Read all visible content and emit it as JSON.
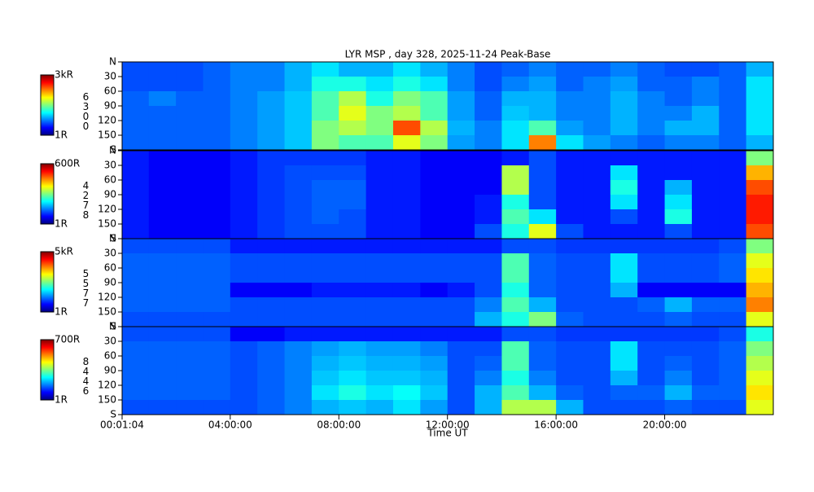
{
  "chart_data": {
    "type": "heatmap",
    "title": "LYR MSP , day 328, 2025-11-24 Peak-Base",
    "xlabel": "Time UT",
    "xlim": [
      0.01778,
      24
    ],
    "xticks": [
      {
        "value": 0.01778,
        "label": "00:01:04"
      },
      {
        "value": 4,
        "label": "04:00:00"
      },
      {
        "value": 8,
        "label": "08:00:00"
      },
      {
        "value": 12,
        "label": "12:00:00"
      },
      {
        "value": 16,
        "label": "16:00:00"
      },
      {
        "value": 20,
        "label": "20:00:00"
      }
    ],
    "panels": [
      {
        "wavelength": "6300",
        "colorbar_max": "3kR",
        "colorbar_min": "1R",
        "ylim": [
          0,
          180
        ],
        "yticks": [
          {
            "value": 0,
            "label": "N"
          },
          30,
          60,
          90,
          120,
          150,
          {
            "value": 180,
            "label": "S"
          }
        ],
        "levels": [
          [
            0.2,
            0.2,
            0.2,
            0.22,
            0.25,
            0.25,
            0.3,
            0.35,
            0.3,
            0.3,
            0.35,
            0.3,
            0.25,
            0.2,
            0.22,
            0.25,
            0.22,
            0.22,
            0.25,
            0.22,
            0.2,
            0.2,
            0.22,
            0.3
          ],
          [
            0.2,
            0.2,
            0.2,
            0.22,
            0.25,
            0.25,
            0.3,
            0.4,
            0.4,
            0.35,
            0.4,
            0.35,
            0.25,
            0.2,
            0.25,
            0.28,
            0.22,
            0.25,
            0.28,
            0.22,
            0.22,
            0.25,
            0.22,
            0.35
          ],
          [
            0.22,
            0.25,
            0.22,
            0.22,
            0.25,
            0.28,
            0.32,
            0.45,
            0.55,
            0.4,
            0.5,
            0.45,
            0.28,
            0.22,
            0.3,
            0.3,
            0.25,
            0.25,
            0.3,
            0.25,
            0.22,
            0.25,
            0.22,
            0.35
          ],
          [
            0.22,
            0.22,
            0.22,
            0.22,
            0.25,
            0.28,
            0.32,
            0.45,
            0.6,
            0.5,
            0.55,
            0.45,
            0.28,
            0.22,
            0.32,
            0.3,
            0.25,
            0.25,
            0.3,
            0.25,
            0.25,
            0.3,
            0.22,
            0.35
          ],
          [
            0.22,
            0.22,
            0.22,
            0.22,
            0.25,
            0.28,
            0.32,
            0.5,
            0.55,
            0.5,
            0.8,
            0.55,
            0.3,
            0.25,
            0.35,
            0.45,
            0.28,
            0.25,
            0.3,
            0.25,
            0.3,
            0.3,
            0.22,
            0.35
          ],
          [
            0.22,
            0.22,
            0.22,
            0.22,
            0.25,
            0.28,
            0.32,
            0.5,
            0.45,
            0.45,
            0.6,
            0.5,
            0.28,
            0.25,
            0.35,
            0.75,
            0.35,
            0.28,
            0.25,
            0.22,
            0.25,
            0.25,
            0.22,
            0.3
          ]
        ]
      },
      {
        "wavelength": "4278",
        "colorbar_max": "600R",
        "colorbar_min": "1R",
        "ylim": [
          0,
          180
        ],
        "yticks": [
          {
            "value": 0,
            "label": "N"
          },
          30,
          60,
          90,
          120,
          150,
          {
            "value": 180,
            "label": "S"
          }
        ],
        "levels": [
          [
            0.15,
            0.12,
            0.12,
            0.12,
            0.15,
            0.18,
            0.18,
            0.18,
            0.18,
            0.15,
            0.15,
            0.12,
            0.12,
            0.12,
            0.15,
            0.2,
            0.15,
            0.15,
            0.15,
            0.15,
            0.15,
            0.15,
            0.15,
            0.5
          ],
          [
            0.15,
            0.12,
            0.12,
            0.12,
            0.15,
            0.18,
            0.2,
            0.2,
            0.2,
            0.15,
            0.15,
            0.12,
            0.12,
            0.12,
            0.55,
            0.2,
            0.15,
            0.15,
            0.35,
            0.15,
            0.15,
            0.15,
            0.15,
            0.7
          ],
          [
            0.15,
            0.12,
            0.12,
            0.12,
            0.15,
            0.18,
            0.2,
            0.22,
            0.22,
            0.15,
            0.15,
            0.12,
            0.12,
            0.12,
            0.55,
            0.2,
            0.15,
            0.15,
            0.4,
            0.15,
            0.3,
            0.15,
            0.15,
            0.8
          ],
          [
            0.15,
            0.12,
            0.12,
            0.12,
            0.15,
            0.18,
            0.2,
            0.22,
            0.22,
            0.15,
            0.15,
            0.12,
            0.12,
            0.15,
            0.4,
            0.2,
            0.15,
            0.15,
            0.35,
            0.15,
            0.35,
            0.15,
            0.15,
            0.85
          ],
          [
            0.15,
            0.12,
            0.12,
            0.12,
            0.15,
            0.18,
            0.2,
            0.22,
            0.2,
            0.15,
            0.15,
            0.12,
            0.12,
            0.15,
            0.45,
            0.35,
            0.15,
            0.15,
            0.2,
            0.15,
            0.4,
            0.15,
            0.15,
            0.85
          ],
          [
            0.15,
            0.12,
            0.12,
            0.12,
            0.15,
            0.18,
            0.2,
            0.2,
            0.2,
            0.15,
            0.15,
            0.12,
            0.12,
            0.2,
            0.4,
            0.6,
            0.2,
            0.15,
            0.15,
            0.15,
            0.2,
            0.15,
            0.15,
            0.8
          ]
        ]
      },
      {
        "wavelength": "5577",
        "colorbar_max": "5kR",
        "colorbar_min": "1R",
        "ylim": [
          0,
          180
        ],
        "yticks": [
          {
            "value": 0,
            "label": "N"
          },
          30,
          60,
          90,
          120,
          150,
          {
            "value": 180,
            "label": "S"
          }
        ],
        "levels": [
          [
            0.2,
            0.2,
            0.2,
            0.2,
            0.15,
            0.15,
            0.15,
            0.15,
            0.15,
            0.15,
            0.15,
            0.15,
            0.15,
            0.15,
            0.2,
            0.2,
            0.18,
            0.18,
            0.18,
            0.18,
            0.18,
            0.18,
            0.2,
            0.5
          ],
          [
            0.22,
            0.22,
            0.22,
            0.22,
            0.2,
            0.2,
            0.2,
            0.2,
            0.2,
            0.2,
            0.2,
            0.2,
            0.2,
            0.2,
            0.45,
            0.22,
            0.2,
            0.2,
            0.35,
            0.2,
            0.2,
            0.2,
            0.22,
            0.6
          ],
          [
            0.22,
            0.22,
            0.22,
            0.22,
            0.2,
            0.2,
            0.2,
            0.2,
            0.2,
            0.2,
            0.2,
            0.2,
            0.2,
            0.2,
            0.45,
            0.22,
            0.2,
            0.2,
            0.35,
            0.2,
            0.2,
            0.2,
            0.22,
            0.65
          ],
          [
            0.22,
            0.22,
            0.22,
            0.22,
            0.12,
            0.12,
            0.12,
            0.15,
            0.15,
            0.15,
            0.15,
            0.12,
            0.15,
            0.2,
            0.4,
            0.22,
            0.2,
            0.2,
            0.3,
            0.12,
            0.12,
            0.12,
            0.12,
            0.7
          ],
          [
            0.22,
            0.22,
            0.22,
            0.22,
            0.2,
            0.2,
            0.2,
            0.2,
            0.2,
            0.2,
            0.2,
            0.2,
            0.2,
            0.25,
            0.45,
            0.3,
            0.2,
            0.2,
            0.2,
            0.22,
            0.3,
            0.22,
            0.22,
            0.75
          ],
          [
            0.2,
            0.2,
            0.2,
            0.2,
            0.2,
            0.2,
            0.2,
            0.2,
            0.2,
            0.2,
            0.2,
            0.2,
            0.2,
            0.3,
            0.4,
            0.5,
            0.22,
            0.2,
            0.2,
            0.2,
            0.22,
            0.2,
            0.2,
            0.6
          ]
        ]
      },
      {
        "wavelength": "8446",
        "colorbar_max": "700R",
        "colorbar_min": "1R",
        "ylim": [
          0,
          180
        ],
        "yticks": [
          {
            "value": 0,
            "label": "N"
          },
          30,
          60,
          90,
          120,
          150,
          {
            "value": 180,
            "label": "S"
          }
        ],
        "levels": [
          [
            0.2,
            0.2,
            0.2,
            0.2,
            0.12,
            0.12,
            0.15,
            0.15,
            0.15,
            0.15,
            0.15,
            0.15,
            0.15,
            0.15,
            0.2,
            0.2,
            0.18,
            0.18,
            0.18,
            0.18,
            0.18,
            0.18,
            0.2,
            0.4
          ],
          [
            0.22,
            0.22,
            0.22,
            0.22,
            0.2,
            0.22,
            0.25,
            0.28,
            0.3,
            0.28,
            0.28,
            0.25,
            0.2,
            0.2,
            0.45,
            0.22,
            0.2,
            0.2,
            0.35,
            0.2,
            0.2,
            0.2,
            0.22,
            0.5
          ],
          [
            0.22,
            0.22,
            0.22,
            0.22,
            0.2,
            0.22,
            0.25,
            0.3,
            0.32,
            0.3,
            0.3,
            0.28,
            0.2,
            0.22,
            0.45,
            0.22,
            0.2,
            0.2,
            0.35,
            0.2,
            0.22,
            0.2,
            0.22,
            0.55
          ],
          [
            0.22,
            0.22,
            0.22,
            0.22,
            0.2,
            0.22,
            0.25,
            0.32,
            0.35,
            0.32,
            0.32,
            0.3,
            0.2,
            0.25,
            0.4,
            0.25,
            0.2,
            0.2,
            0.3,
            0.2,
            0.25,
            0.2,
            0.22,
            0.6
          ],
          [
            0.22,
            0.22,
            0.22,
            0.22,
            0.2,
            0.22,
            0.25,
            0.35,
            0.4,
            0.35,
            0.38,
            0.32,
            0.2,
            0.3,
            0.45,
            0.3,
            0.22,
            0.2,
            0.22,
            0.22,
            0.3,
            0.22,
            0.22,
            0.65
          ],
          [
            0.2,
            0.2,
            0.2,
            0.2,
            0.2,
            0.22,
            0.25,
            0.3,
            0.32,
            0.3,
            0.35,
            0.28,
            0.2,
            0.3,
            0.55,
            0.55,
            0.3,
            0.2,
            0.2,
            0.2,
            0.22,
            0.2,
            0.2,
            0.6
          ]
        ]
      }
    ]
  }
}
